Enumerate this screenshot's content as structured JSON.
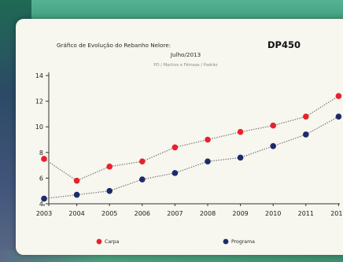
{
  "chart_data": {
    "type": "line",
    "title": "Gráfico de Evolução do Rebanho Nelore:",
    "title_bold": "DP450",
    "subtitle": "Julho/2013",
    "subsubtitle": "PO / Machos e Fêmeas / Padrão",
    "x": [
      "2003",
      "2004",
      "2005",
      "2006",
      "2007",
      "2008",
      "2009",
      "2010",
      "2011",
      "2012"
    ],
    "ylim": [
      4,
      14
    ],
    "yticks": [
      4,
      6,
      8,
      10,
      12,
      14
    ],
    "grid": false,
    "legend_position": "bottom",
    "series": [
      {
        "name": "Carpa",
        "color": "#e8212b",
        "values": [
          7.5,
          5.8,
          6.9,
          7.3,
          8.4,
          9.0,
          9.6,
          10.1,
          10.8,
          12.4
        ]
      },
      {
        "name": "Programa",
        "color": "#1d2b6b",
        "values": [
          4.4,
          4.7,
          5.0,
          5.9,
          6.4,
          7.3,
          7.6,
          8.5,
          9.4,
          10.8
        ]
      }
    ]
  }
}
